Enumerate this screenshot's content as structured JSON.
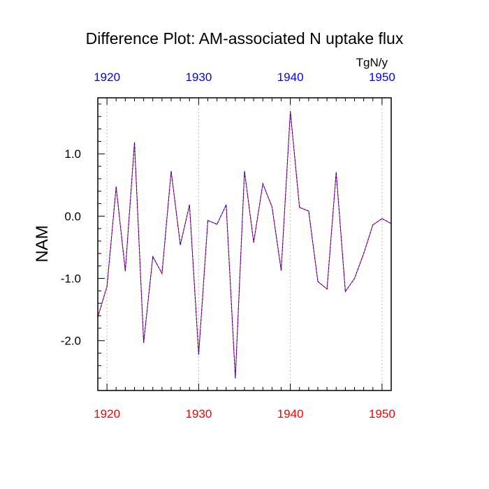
{
  "chart_data": {
    "type": "line",
    "title": "Difference Plot: AM-associated N uptake flux",
    "ylabel": "NAM",
    "units_label": "TgN/y",
    "xlim": [
      1919,
      1951
    ],
    "ylim": [
      -2.8,
      1.9
    ],
    "x_ticks": [
      1920,
      1930,
      1940,
      1950
    ],
    "x_tick_labels": [
      "1920",
      "1930",
      "1940",
      "1950"
    ],
    "y_ticks": [
      1.0,
      0.0,
      -1.0,
      -2.0
    ],
    "y_tick_labels": [
      "1.0",
      "0.0",
      "-1.0",
      "-2.0"
    ],
    "grid": "vertical dashed at major x ticks",
    "colors": {
      "bottom_tick_labels": "#ff0000",
      "top_tick_labels": "#0000ff",
      "line_a": "#ff0000",
      "line_b": "#0000ff",
      "grid": "#bbbbbb"
    },
    "series": [
      {
        "x": [
          1919,
          1920,
          1921,
          1922,
          1923,
          1924,
          1925,
          1926,
          1927,
          1928,
          1929,
          1930,
          1931,
          1932,
          1933,
          1934,
          1935,
          1936,
          1937,
          1938,
          1939,
          1940,
          1941,
          1942,
          1943,
          1944,
          1945,
          1946,
          1947,
          1948,
          1949,
          1950,
          1951
        ],
        "values": [
          -1.62,
          -1.13,
          0.47,
          -0.88,
          1.18,
          -2.03,
          -0.65,
          -0.92,
          0.72,
          -0.46,
          0.18,
          -2.22,
          -0.07,
          -0.13,
          0.18,
          -2.6,
          0.72,
          -0.42,
          0.52,
          0.15,
          -0.87,
          1.68,
          0.14,
          0.08,
          -1.05,
          -1.17,
          0.7,
          -1.21,
          -1.0,
          -0.6,
          -0.14,
          -0.04,
          -0.12
        ]
      }
    ]
  }
}
